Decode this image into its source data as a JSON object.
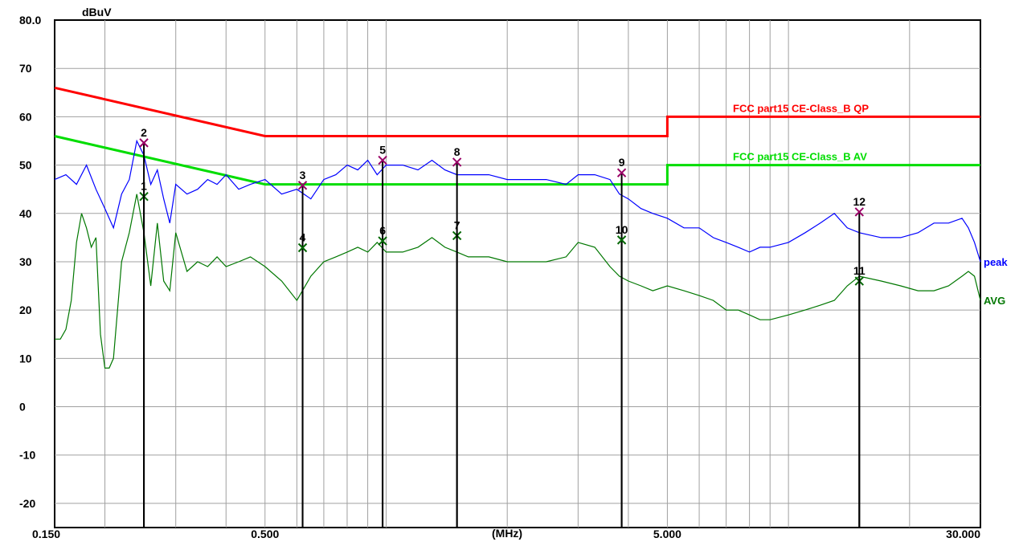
{
  "chart_data": {
    "type": "line",
    "title": "",
    "ylabel": "dBuV",
    "xlabel": "(MHz)",
    "x_scale": "log",
    "xlim": [
      0.15,
      30.0
    ],
    "ylim": [
      -25,
      80
    ],
    "grid": true,
    "y_ticks": [
      {
        "value": 80,
        "label": "80.0"
      },
      {
        "value": 70,
        "label": "70"
      },
      {
        "value": 60,
        "label": "60"
      },
      {
        "value": 50,
        "label": "50"
      },
      {
        "value": 40,
        "label": "40"
      },
      {
        "value": 30,
        "label": "30"
      },
      {
        "value": 20,
        "label": "20"
      },
      {
        "value": 10,
        "label": "10"
      },
      {
        "value": 0,
        "label": "0"
      },
      {
        "value": -10,
        "label": "-10"
      },
      {
        "value": -20,
        "label": "-20"
      }
    ],
    "x_ticks": [
      {
        "value": 0.15,
        "label": "0.150"
      },
      {
        "value": 0.5,
        "label": "0.500"
      },
      {
        "value": 5.0,
        "label": "5.000"
      },
      {
        "value": 30.0,
        "label": "30.000"
      }
    ],
    "limit_lines": [
      {
        "name": "FCC part15 CE-Class_B QP",
        "color": "#ff0000",
        "x": [
          0.15,
          0.5,
          0.5,
          5.0,
          5.0,
          30.0
        ],
        "y": [
          66,
          56,
          56,
          56,
          60,
          60
        ]
      },
      {
        "name": "FCC part15 CE-Class_B AV",
        "color": "#00dd00",
        "x": [
          0.15,
          0.5,
          0.5,
          5.0,
          5.0,
          30.0
        ],
        "y": [
          56,
          46,
          46,
          46,
          50,
          50
        ]
      }
    ],
    "series": [
      {
        "name": "peak",
        "color": "#0000ff",
        "x": [
          0.15,
          0.16,
          0.17,
          0.18,
          0.19,
          0.2,
          0.21,
          0.22,
          0.23,
          0.24,
          0.25,
          0.26,
          0.27,
          0.28,
          0.29,
          0.3,
          0.32,
          0.34,
          0.36,
          0.38,
          0.4,
          0.43,
          0.46,
          0.5,
          0.55,
          0.6,
          0.65,
          0.7,
          0.75,
          0.8,
          0.85,
          0.9,
          0.95,
          1.0,
          1.1,
          1.2,
          1.3,
          1.4,
          1.5,
          1.6,
          1.8,
          2.0,
          2.2,
          2.5,
          2.8,
          3.0,
          3.3,
          3.6,
          3.8,
          4.0,
          4.3,
          4.6,
          5.0,
          5.5,
          6.0,
          6.5,
          7.0,
          7.5,
          8.0,
          8.5,
          9.0,
          10.0,
          11.0,
          12.0,
          13.0,
          14.0,
          15.0,
          17.0,
          19.0,
          21.0,
          23.0,
          25.0,
          27.0,
          28.0,
          29.0,
          30.0
        ],
        "y": [
          47,
          48,
          46,
          50,
          45,
          41,
          37,
          44,
          47,
          55,
          52,
          46,
          49,
          43,
          38,
          46,
          44,
          45,
          47,
          46,
          48,
          45,
          46,
          47,
          44,
          45,
          43,
          47,
          48,
          50,
          49,
          51,
          48,
          50,
          50,
          49,
          51,
          49,
          48,
          48,
          48,
          47,
          47,
          47,
          46,
          48,
          48,
          47,
          44,
          43,
          41,
          40,
          39,
          37,
          37,
          35,
          34,
          33,
          32,
          33,
          33,
          34,
          36,
          38,
          40,
          37,
          36,
          35,
          35,
          36,
          38,
          38,
          39,
          37,
          34,
          30
        ]
      },
      {
        "name": "AVG",
        "color": "#007700",
        "x": [
          0.15,
          0.155,
          0.16,
          0.165,
          0.17,
          0.175,
          0.18,
          0.185,
          0.19,
          0.195,
          0.2,
          0.205,
          0.21,
          0.22,
          0.23,
          0.24,
          0.25,
          0.26,
          0.27,
          0.28,
          0.29,
          0.3,
          0.32,
          0.34,
          0.36,
          0.38,
          0.4,
          0.43,
          0.46,
          0.5,
          0.55,
          0.6,
          0.65,
          0.7,
          0.75,
          0.8,
          0.85,
          0.9,
          0.95,
          1.0,
          1.1,
          1.2,
          1.3,
          1.4,
          1.5,
          1.6,
          1.8,
          2.0,
          2.2,
          2.5,
          2.8,
          3.0,
          3.3,
          3.6,
          3.8,
          4.0,
          4.3,
          4.6,
          5.0,
          5.5,
          6.0,
          6.5,
          7.0,
          7.5,
          8.0,
          8.5,
          9.0,
          10.0,
          11.0,
          12.0,
          13.0,
          14.0,
          15.0,
          17.0,
          19.0,
          21.0,
          23.0,
          25.0,
          27.0,
          28.0,
          29.0,
          30.0
        ],
        "y": [
          14,
          14,
          16,
          22,
          34,
          40,
          37,
          33,
          35,
          15,
          8,
          8,
          10,
          30,
          36,
          44,
          36,
          25,
          38,
          26,
          24,
          36,
          28,
          30,
          29,
          31,
          29,
          30,
          31,
          29,
          26,
          22,
          27,
          30,
          31,
          32,
          33,
          32,
          34,
          32,
          32,
          33,
          35,
          33,
          32,
          31,
          31,
          30,
          30,
          30,
          31,
          34,
          33,
          29,
          27,
          26,
          25,
          24,
          25,
          24,
          23,
          22,
          20,
          20,
          19,
          18,
          18,
          19,
          20,
          21,
          22,
          25,
          27,
          26,
          25,
          24,
          24,
          25,
          27,
          28,
          27,
          22
        ]
      }
    ],
    "markers": [
      {
        "label": "1",
        "x": 0.25,
        "y": 43.5,
        "series": "AVG"
      },
      {
        "label": "2",
        "x": 0.25,
        "y": 54.6,
        "series": "peak"
      },
      {
        "label": "3",
        "x": 0.62,
        "y": 45.8,
        "series": "peak"
      },
      {
        "label": "4",
        "x": 0.62,
        "y": 32.9,
        "series": "AVG"
      },
      {
        "label": "5",
        "x": 0.98,
        "y": 51.0,
        "series": "peak"
      },
      {
        "label": "6",
        "x": 0.98,
        "y": 34.3,
        "series": "AVG"
      },
      {
        "label": "7",
        "x": 1.5,
        "y": 35.4,
        "series": "AVG"
      },
      {
        "label": "8",
        "x": 1.5,
        "y": 50.6,
        "series": "peak"
      },
      {
        "label": "9",
        "x": 3.85,
        "y": 48.4,
        "series": "peak"
      },
      {
        "label": "10",
        "x": 3.85,
        "y": 34.5,
        "series": "AVG"
      },
      {
        "label": "11",
        "x": 15.0,
        "y": 26.0,
        "series": "AVG"
      },
      {
        "label": "12",
        "x": 15.0,
        "y": 40.3,
        "series": "peak"
      }
    ]
  }
}
